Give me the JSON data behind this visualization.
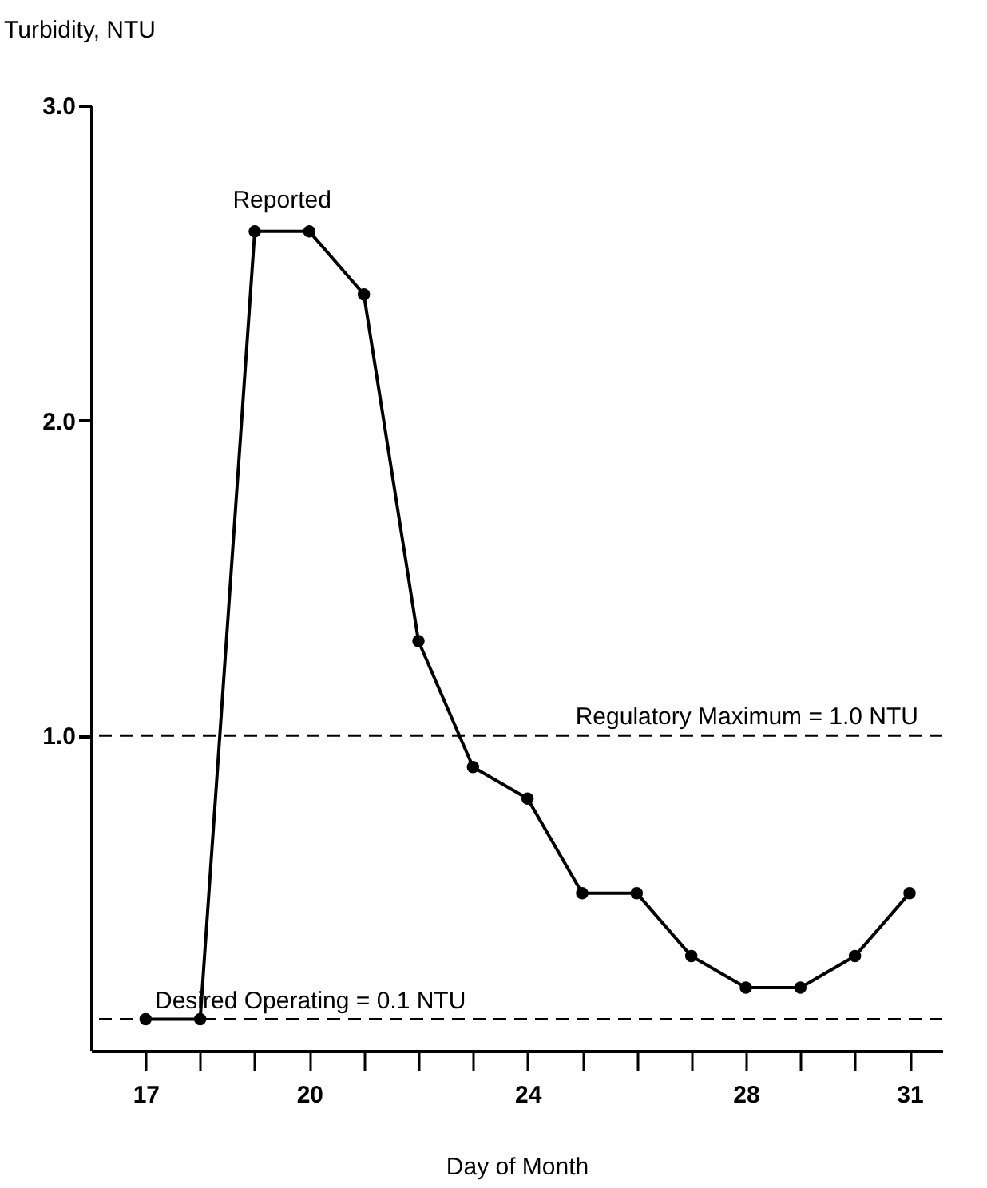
{
  "chart_data": {
    "type": "line",
    "xlabel": "Day of Month",
    "ylabel": "Turbidity, NTU",
    "x": [
      17,
      18,
      19,
      20,
      21,
      22,
      23,
      24,
      25,
      26,
      27,
      28,
      29,
      30,
      31
    ],
    "series": [
      {
        "color": "#000000",
        "values": [
          0.1,
          0.1,
          2.6,
          2.6,
          2.4,
          1.3,
          0.9,
          0.8,
          0.5,
          0.5,
          0.3,
          0.2,
          0.2,
          0.3,
          0.5
        ]
      }
    ],
    "xlim": [
      16,
      31.6
    ],
    "xticks": [
      17,
      {
        "value": 18,
        "label": null
      },
      {
        "value": 19,
        "label": null
      },
      20,
      {
        "value": 21,
        "label": null
      },
      {
        "value": 22,
        "label": null
      },
      {
        "value": 23,
        "label": null
      },
      24,
      {
        "value": 25,
        "label": null
      },
      {
        "value": 26,
        "label": null
      },
      {
        "value": 27,
        "label": null
      },
      28,
      {
        "value": 29,
        "label": null
      },
      {
        "value": 30,
        "label": null
      },
      31
    ],
    "ylim": [
      0,
      3.0
    ],
    "yticks": [
      {
        "value": 1,
        "label": "1.0"
      },
      {
        "value": 2,
        "label": "2.0"
      },
      {
        "value": 3,
        "label": "3.0"
      }
    ],
    "ref_lines": [
      {
        "axis": "y",
        "value": 1.0,
        "label": "Regulatory Maximum = 1.0 NTU",
        "line_style": "dashed"
      },
      {
        "axis": "y",
        "value": 0.1,
        "label": "Desired Operating = 0.1 NTU",
        "line_style": "dashed"
      }
    ],
    "annotations": [
      {
        "text": "Reported",
        "x": 19.5,
        "y": 2.6
      }
    ],
    "marker": "circle",
    "line_style": "solid",
    "grid": false
  }
}
